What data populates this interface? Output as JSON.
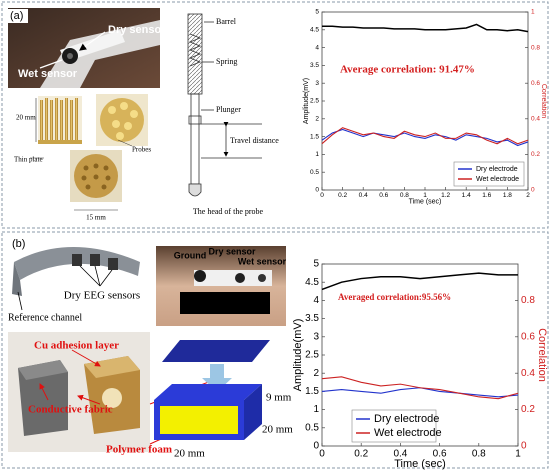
{
  "panel_a": {
    "label": "(a)",
    "photo_labels": [
      "Dry sensor",
      "Wet sensor"
    ],
    "probe_labels": [
      "20 mm",
      "Thin plate",
      "Probes",
      "15 mm"
    ],
    "diagram_labels": [
      "Barrel",
      "Spring",
      "Plunger",
      "Travel distance",
      "The head of the probe"
    ]
  },
  "panel_b": {
    "label": "(b)",
    "headset_labels": [
      "Dry EEG sensors",
      "Reference channel"
    ],
    "head_labels": [
      "Ground",
      "Dry sensor",
      "Wet sensor"
    ],
    "foam_labels": [
      "Cu adhesion layer",
      "Conductive fabric",
      "Polymer foam"
    ],
    "dimension_labels": [
      "9 mm",
      "20 mm",
      "20 mm"
    ]
  },
  "chart_data": [
    {
      "type": "line",
      "annotation": "Average correlation: 91.47%",
      "xlabel": "Time (sec)",
      "ylabel": "Amplitude(mV)",
      "y2label": "Correlation",
      "x": [
        0,
        0.1,
        0.2,
        0.3,
        0.4,
        0.5,
        0.6,
        0.7,
        0.8,
        0.9,
        1,
        1.1,
        1.2,
        1.3,
        1.4,
        1.5,
        1.6,
        1.7,
        1.8,
        1.9,
        2
      ],
      "xlim": [
        0,
        2
      ],
      "xticks": [
        0,
        0.2,
        0.4,
        0.6,
        0.8,
        1,
        1.2,
        1.4,
        1.6,
        1.8,
        2
      ],
      "ylim": [
        0,
        5
      ],
      "yticks": [
        0,
        0.5,
        1,
        1.5,
        2,
        2.5,
        3,
        3.5,
        4,
        4.5,
        5
      ],
      "y2lim": [
        0,
        1
      ],
      "y2ticks": [
        0,
        0.2,
        0.4,
        0.6,
        0.8,
        1
      ],
      "legend": "lower right",
      "series": [
        {
          "color": "#000000",
          "axis": "y2",
          "values": [
            0.92,
            0.92,
            0.915,
            0.915,
            0.91,
            0.91,
            0.91,
            0.905,
            0.905,
            0.905,
            0.9,
            0.9,
            0.9,
            0.905,
            0.91,
            0.93,
            0.9,
            0.9,
            0.895,
            0.9,
            0.89
          ]
        },
        {
          "name": "Dry electrode",
          "color": "#2233cc",
          "values": [
            1.4,
            1.6,
            1.7,
            1.6,
            1.5,
            1.6,
            1.55,
            1.5,
            1.6,
            1.5,
            1.45,
            1.55,
            1.5,
            1.4,
            1.55,
            1.5,
            1.45,
            1.35,
            1.4,
            1.25,
            1.35
          ]
        },
        {
          "name": "Wet electrode",
          "color": "#cc2222",
          "values": [
            1.3,
            1.55,
            1.75,
            1.65,
            1.55,
            1.6,
            1.5,
            1.45,
            1.65,
            1.55,
            1.5,
            1.6,
            1.45,
            1.45,
            1.6,
            1.55,
            1.4,
            1.3,
            1.45,
            1.3,
            1.4
          ]
        }
      ]
    },
    {
      "type": "line",
      "annotation": "Averaged correlation:95.56%",
      "xlabel": "Time (sec)",
      "ylabel": "Amplitude(mV)",
      "y2label": "Correlation",
      "x": [
        0,
        0.1,
        0.2,
        0.3,
        0.4,
        0.5,
        0.6,
        0.7,
        0.8,
        0.9,
        1
      ],
      "xlim": [
        0,
        1
      ],
      "xticks": [
        0,
        0.2,
        0.4,
        0.6,
        0.8,
        1
      ],
      "ylim": [
        0,
        5
      ],
      "yticks": [
        0,
        0.5,
        1,
        1.5,
        2,
        2.5,
        3,
        3.5,
        4,
        4.5,
        5
      ],
      "y2lim": [
        0,
        1
      ],
      "y2ticks": [
        0,
        0.2,
        0.4,
        0.6,
        0.8
      ],
      "legend": "lower left",
      "series": [
        {
          "color": "#000000",
          "axis": "y2",
          "values": [
            0.86,
            0.9,
            0.92,
            0.93,
            0.93,
            0.92,
            0.93,
            0.94,
            0.95,
            0.94,
            0.94
          ]
        },
        {
          "name": "Dry electrode",
          "color": "#2233cc",
          "values": [
            1.5,
            1.55,
            1.5,
            1.45,
            1.55,
            1.6,
            1.5,
            1.45,
            1.4,
            1.35,
            1.4
          ]
        },
        {
          "name": "Wet electrode",
          "color": "#cc2222",
          "values": [
            1.85,
            1.9,
            1.75,
            1.65,
            1.7,
            1.6,
            1.55,
            1.45,
            1.35,
            1.3,
            1.45
          ]
        }
      ]
    }
  ]
}
